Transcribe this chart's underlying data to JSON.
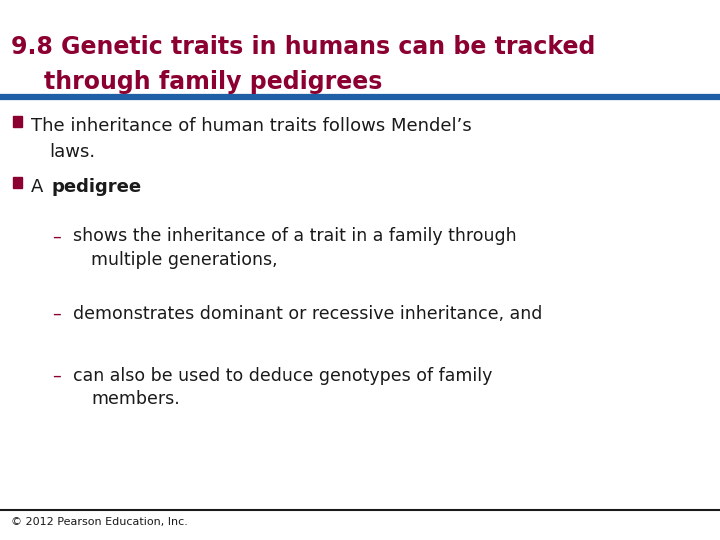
{
  "title_line1": "9.8 Genetic traits in humans can be tracked",
  "title_line2": "    through family pedigrees",
  "title_color": "#8B0030",
  "title_fontsize": 17,
  "blue_line_color": "#1F5FA6",
  "black_line_color": "#1a1a1a",
  "bullet_color": "#8B0030",
  "body_fontsize": 13,
  "sub_fontsize": 12.5,
  "background_color": "#ffffff",
  "footer_text": "© 2012 Pearson Education, Inc.",
  "footer_fontsize": 8,
  "bullet1_text1": "The inheritance of human traits follows Mendel’s",
  "bullet1_text2": "laws.",
  "bullet2_text": "A ",
  "bullet2_bold": "pedigree",
  "sub1_dash": "–",
  "sub1_text1": "shows the inheritance of a trait in a family through",
  "sub1_text2": "multiple generations,",
  "sub2_dash": "–",
  "sub2_text": "demonstrates dominant or recessive inheritance, and",
  "sub3_dash": "–",
  "sub3_text1": "can also be used to deduce genotypes of family",
  "sub3_text2": "members."
}
